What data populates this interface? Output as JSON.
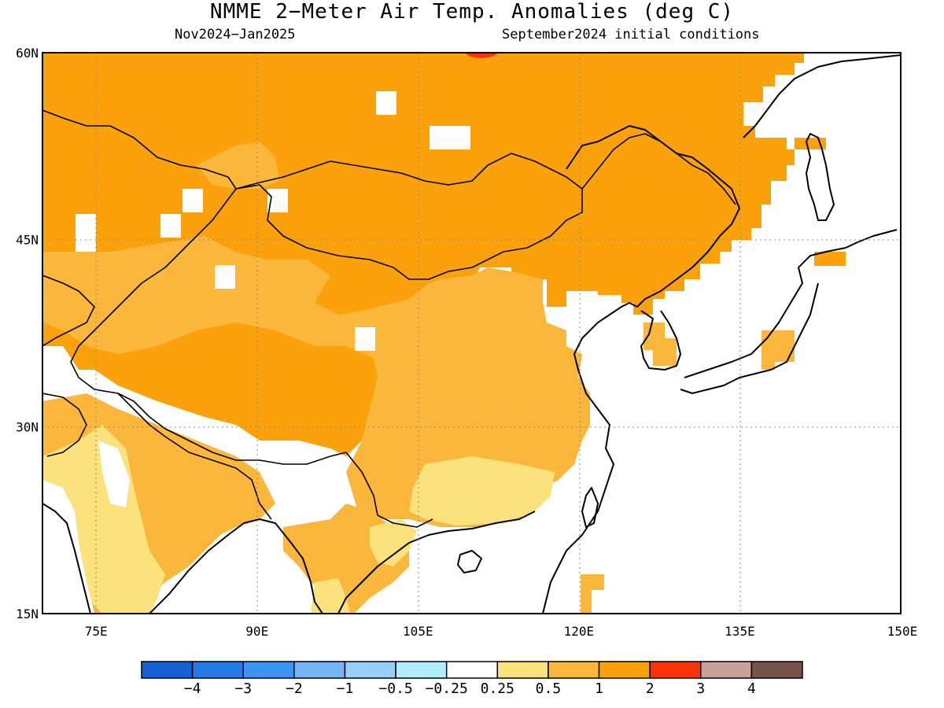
{
  "title": "NMME 2−Meter Air Temp. Anomalies (deg C)",
  "subtitle_left": "Nov2024−Jan2025",
  "subtitle_right": "September2024 initial conditions",
  "map": {
    "lon_range": [
      70,
      150
    ],
    "lat_range": [
      15,
      60
    ],
    "lat_ticks": [
      {
        "value": 60,
        "label": "60N"
      },
      {
        "value": 45,
        "label": "45N"
      },
      {
        "value": 30,
        "label": "30N"
      },
      {
        "value": 15,
        "label": "15N"
      }
    ],
    "lon_ticks": [
      {
        "value": 75,
        "label": "75E"
      },
      {
        "value": 90,
        "label": "90E"
      },
      {
        "value": 105,
        "label": "105E"
      },
      {
        "value": 120,
        "label": "120E"
      },
      {
        "value": 135,
        "label": "135E"
      },
      {
        "value": 150,
        "label": "150E"
      }
    ],
    "grid": "dotted",
    "colors": {
      "warm_1_2": "#fba10b",
      "warm_05_1": "#fbb73b",
      "warm_025_05": "#fce27c",
      "warm_2_3": "#fa3208",
      "neutral": "#ffffff",
      "coast": "#000000"
    }
  },
  "colorbar": {
    "bins": [
      {
        "color": "#1560d5"
      },
      {
        "color": "#2779e6"
      },
      {
        "color": "#3c93f1"
      },
      {
        "color": "#75b5f6"
      },
      {
        "color": "#98cefa"
      },
      {
        "color": "#b3ecfa"
      },
      {
        "color": "#ffffff"
      },
      {
        "color": "#fce27c"
      },
      {
        "color": "#fbb73b"
      },
      {
        "color": "#fba10b"
      },
      {
        "color": "#fa3208"
      },
      {
        "color": "#c8a298"
      },
      {
        "color": "#76544a"
      }
    ],
    "labels": [
      "−4",
      "−3",
      "−2",
      "−1",
      "−0.5",
      "−0.25",
      "0.25",
      "0.5",
      "1",
      "2",
      "3",
      "4"
    ]
  }
}
